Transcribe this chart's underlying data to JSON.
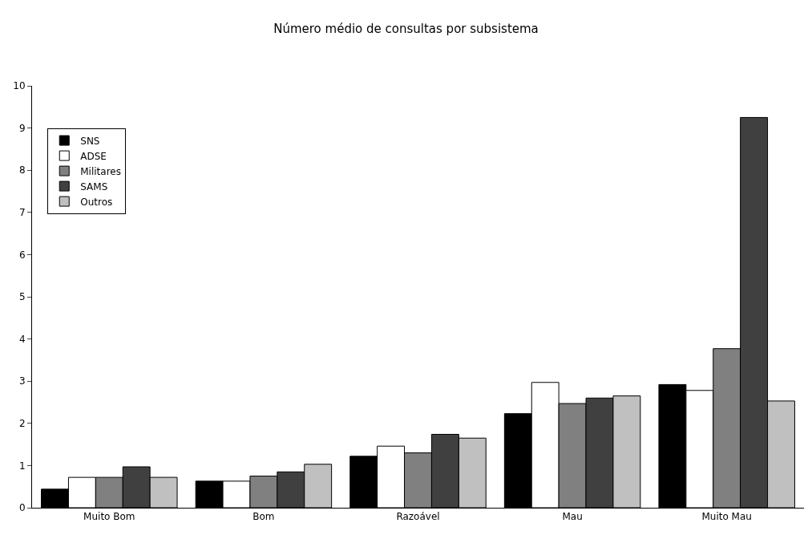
{
  "chart_data": {
    "type": "bar",
    "title": "Número médio de consultas por subsistema",
    "categories": [
      "Muito Bom",
      "Bom",
      "Razoável",
      "Mau",
      "Muito Mau"
    ],
    "series": [
      {
        "name": "SNS",
        "color": "#000000",
        "values": [
          0.44,
          0.63,
          1.22,
          2.23,
          2.92
        ]
      },
      {
        "name": "ADSE",
        "color": "#ffffff",
        "values": [
          0.72,
          0.63,
          1.46,
          2.97,
          2.78
        ]
      },
      {
        "name": "Militares",
        "color": "#808080",
        "values": [
          0.72,
          0.75,
          1.3,
          2.47,
          3.77
        ]
      },
      {
        "name": "SAMS",
        "color": "#404040",
        "values": [
          0.97,
          0.85,
          1.74,
          2.6,
          9.25
        ]
      },
      {
        "name": "Outros",
        "color": "#c0c0c0",
        "values": [
          0.72,
          1.03,
          1.65,
          2.65,
          2.53
        ]
      }
    ],
    "ylim": [
      0,
      10
    ],
    "yticks": [
      0,
      1,
      2,
      3,
      4,
      5,
      6,
      7,
      8,
      9,
      10
    ],
    "grid": false,
    "legend": "top left"
  }
}
